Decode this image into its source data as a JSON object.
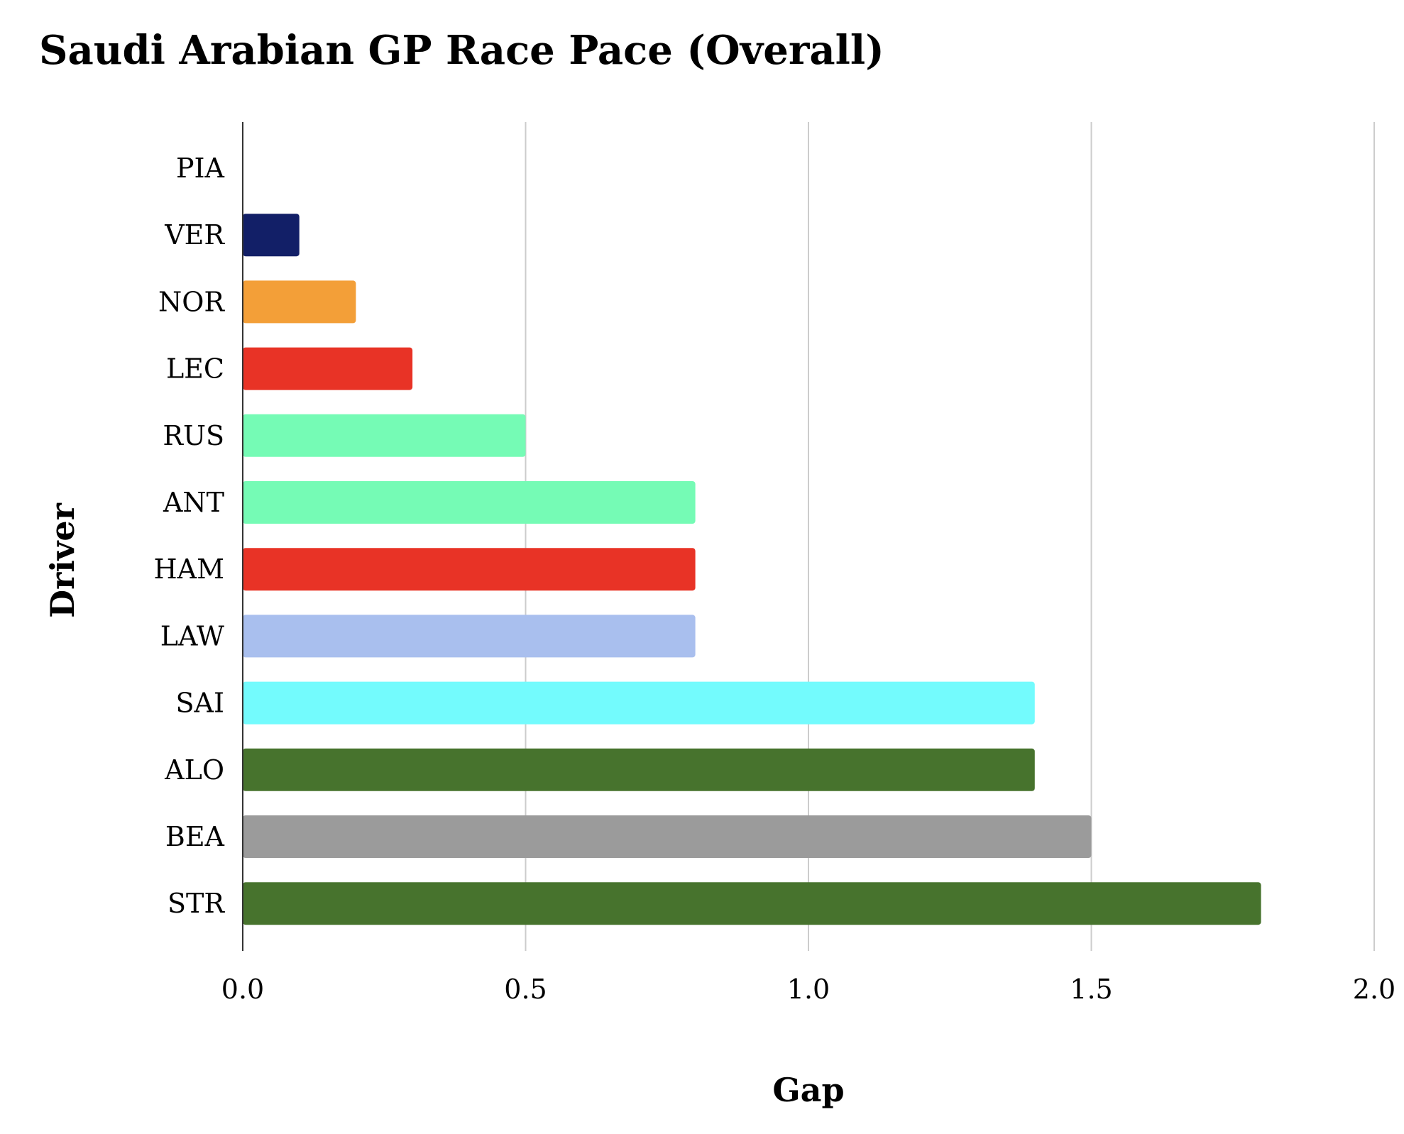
{
  "chart_data": {
    "type": "bar",
    "orientation": "horizontal",
    "title": "Saudi Arabian GP Race Pace (Overall)",
    "xlabel": "Gap",
    "ylabel": "Driver",
    "xlim": [
      0,
      2.0
    ],
    "xticks": [
      "0.0",
      "0.5",
      "1.0",
      "1.5",
      "2.0"
    ],
    "grid": "vertical",
    "legend": "none",
    "categories": [
      "PIA",
      "VER",
      "NOR",
      "LEC",
      "RUS",
      "ANT",
      "HAM",
      "LAW",
      "SAI",
      "ALO",
      "BEA",
      "STR"
    ],
    "values": [
      0.0,
      0.1,
      0.2,
      0.3,
      0.5,
      0.8,
      0.8,
      0.8,
      1.4,
      1.4,
      1.5,
      1.8
    ],
    "colors": [
      "#ffffff",
      "#121F67",
      "#F39F38",
      "#E83326",
      "#75FBB5",
      "#75FBB5",
      "#E83326",
      "#A9BFEE",
      "#73FBFD",
      "#47732D",
      "#9B9B9B",
      "#47732D"
    ]
  }
}
